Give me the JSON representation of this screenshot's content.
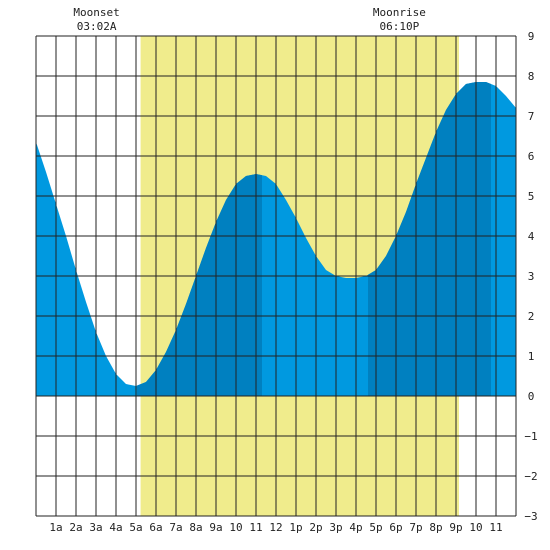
{
  "chart_data": {
    "type": "area",
    "title": "",
    "xlabel": "",
    "ylabel": "",
    "x_unit": "hours after midnight",
    "xlim": [
      0,
      24
    ],
    "ylim": [
      -3,
      9
    ],
    "y_ticks": [
      -3,
      -2,
      -1,
      0,
      1,
      2,
      3,
      4,
      5,
      6,
      7,
      8,
      9
    ],
    "x_tick_labels": [
      {
        "hour": 1,
        "label": "1a"
      },
      {
        "hour": 2,
        "label": "2a"
      },
      {
        "hour": 3,
        "label": "3a"
      },
      {
        "hour": 4,
        "label": "4a"
      },
      {
        "hour": 5,
        "label": "5a"
      },
      {
        "hour": 6,
        "label": "6a"
      },
      {
        "hour": 7,
        "label": "7a"
      },
      {
        "hour": 8,
        "label": "8a"
      },
      {
        "hour": 9,
        "label": "9a"
      },
      {
        "hour": 10,
        "label": "10"
      },
      {
        "hour": 11,
        "label": "11"
      },
      {
        "hour": 12,
        "label": "12"
      },
      {
        "hour": 13,
        "label": "1p"
      },
      {
        "hour": 14,
        "label": "2p"
      },
      {
        "hour": 15,
        "label": "3p"
      },
      {
        "hour": 16,
        "label": "4p"
      },
      {
        "hour": 17,
        "label": "5p"
      },
      {
        "hour": 18,
        "label": "6p"
      },
      {
        "hour": 19,
        "label": "7p"
      },
      {
        "hour": 20,
        "label": "8p"
      },
      {
        "hour": 21,
        "label": "9p"
      },
      {
        "hour": 22,
        "label": "10"
      },
      {
        "hour": 23,
        "label": "11"
      }
    ],
    "daylight": {
      "start": 5.23,
      "end": 21.15
    },
    "extremes": [
      {
        "hour": 5.05,
        "value": 0.25
      },
      {
        "hour": 11.3,
        "value": 5.55
      },
      {
        "hour": 16.6,
        "value": 2.95
      },
      {
        "hour": 22.75,
        "value": 7.85
      }
    ],
    "series": [
      {
        "x": [
          0,
          0.5,
          1,
          1.5,
          2,
          2.5,
          3,
          3.5,
          4,
          4.5,
          5,
          5.5,
          6,
          6.5,
          7,
          7.5,
          8,
          8.5,
          9,
          9.5,
          10,
          10.5,
          11,
          11.5,
          12,
          12.5,
          13,
          13.5,
          14,
          14.5,
          15,
          15.5,
          16,
          16.5,
          17,
          17.5,
          18,
          18.5,
          19,
          19.5,
          20,
          20.5,
          21,
          21.5,
          22,
          22.5,
          23,
          23.5,
          24
        ],
        "values": [
          6.35,
          5.6,
          4.8,
          4.0,
          3.15,
          2.35,
          1.6,
          1.0,
          0.55,
          0.3,
          0.25,
          0.35,
          0.65,
          1.1,
          1.65,
          2.3,
          3.0,
          3.7,
          4.35,
          4.9,
          5.3,
          5.5,
          5.55,
          5.5,
          5.3,
          4.9,
          4.45,
          3.95,
          3.5,
          3.15,
          3.0,
          2.95,
          2.95,
          3.0,
          3.15,
          3.5,
          4.0,
          4.6,
          5.3,
          5.95,
          6.6,
          7.15,
          7.55,
          7.8,
          7.85,
          7.85,
          7.75,
          7.5,
          7.2
        ]
      }
    ],
    "shade_bands": [
      {
        "from": 5.05,
        "to": 11.3,
        "shade": "dark"
      },
      {
        "from": 16.6,
        "to": 22.75,
        "shade": "dark"
      }
    ],
    "annotations": [
      {
        "hour": 3.03,
        "title": "Moonset",
        "time": "03:02A"
      },
      {
        "hour": 18.17,
        "title": "Moonrise",
        "time": "06:10P"
      }
    ],
    "colors": {
      "daylight": "#f0ec8c",
      "water": "#0099e0",
      "water_dark": "#0080c0",
      "grid": "#222222",
      "background": "#ffffff"
    }
  }
}
